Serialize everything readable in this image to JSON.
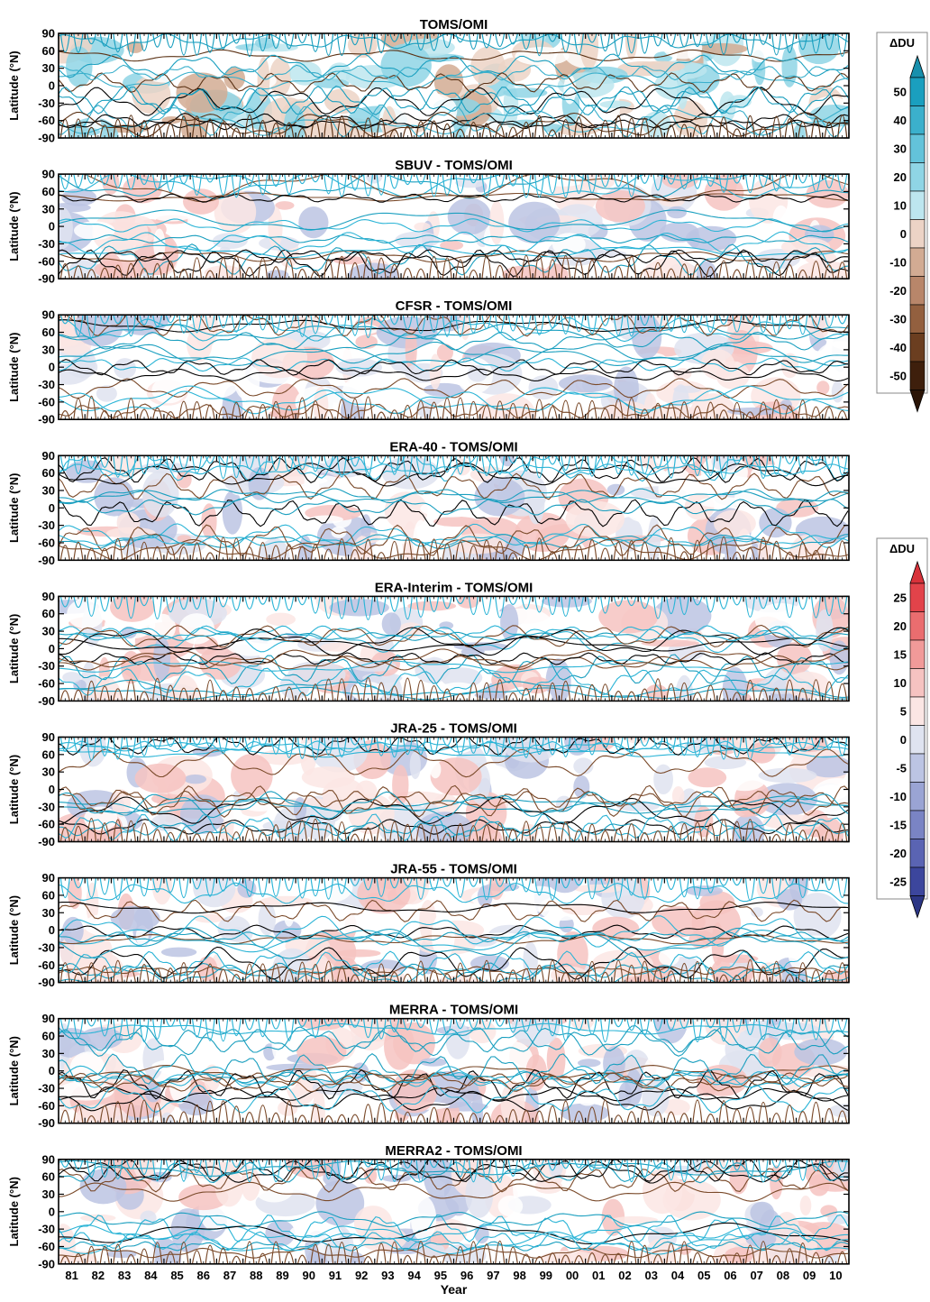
{
  "chart_data": {
    "type": "heatmap",
    "description_of_panels": [],
    "xlabel": "Year",
    "ylabel": "Latitude (°N)",
    "x_ticks": [
      "81",
      "82",
      "83",
      "84",
      "85",
      "86",
      "87",
      "88",
      "89",
      "90",
      "91",
      "92",
      "93",
      "94",
      "95",
      "96",
      "97",
      "98",
      "99",
      "00",
      "01",
      "02",
      "03",
      "04",
      "05",
      "06",
      "07",
      "08",
      "09",
      "10"
    ],
    "y_ticks": [
      "90",
      "60",
      "30",
      "0",
      "-30",
      "-60",
      "-90"
    ],
    "ylim": [
      -90,
      90
    ],
    "panels": [
      {
        "title": "TOMS/OMI",
        "colorscale": "total"
      },
      {
        "title": "SBUV - TOMS/OMI",
        "colorscale": "diff"
      },
      {
        "title": "CFSR - TOMS/OMI",
        "colorscale": "diff"
      },
      {
        "title": "ERA-40 - TOMS/OMI",
        "colorscale": "diff"
      },
      {
        "title": "ERA-Interim - TOMS/OMI",
        "colorscale": "diff"
      },
      {
        "title": "JRA-25 - TOMS/OMI",
        "colorscale": "diff"
      },
      {
        "title": "JRA-55 - TOMS/OMI",
        "colorscale": "diff"
      },
      {
        "title": "MERRA - TOMS/OMI",
        "colorscale": "diff"
      },
      {
        "title": "MERRA2 - TOMS/OMI",
        "colorscale": "diff"
      }
    ],
    "colorbars": [
      {
        "title": "ΔDU",
        "ticks": [
          "50",
          "40",
          "30",
          "20",
          "10",
          "0",
          "-10",
          "-20",
          "-30",
          "-40",
          "-50"
        ],
        "colors": [
          "#1a9fbf",
          "#3bb0cc",
          "#63c3da",
          "#8fd5e5",
          "#bde6ef",
          "#ecd3c6",
          "#d2ab93",
          "#b8866a",
          "#93603f",
          "#6b3e20",
          "#3e1f0c"
        ],
        "arrow_top": "#1890ad",
        "arrow_bottom": "#2a1406"
      },
      {
        "title": "ΔDU",
        "ticks": [
          "25",
          "20",
          "15",
          "10",
          "5",
          "0",
          "-5",
          "-10",
          "-15",
          "-20",
          "-25"
        ],
        "colors": [
          "#e2434a",
          "#ea6d6f",
          "#f19a99",
          "#f6c3c1",
          "#fbe6e4",
          "#dfe3f0",
          "#bcc4e3",
          "#9aa4d4",
          "#7a84c4",
          "#5a64b3",
          "#3c469d"
        ],
        "arrow_top": "#d8323a",
        "arrow_bottom": "#2c3685"
      }
    ]
  }
}
